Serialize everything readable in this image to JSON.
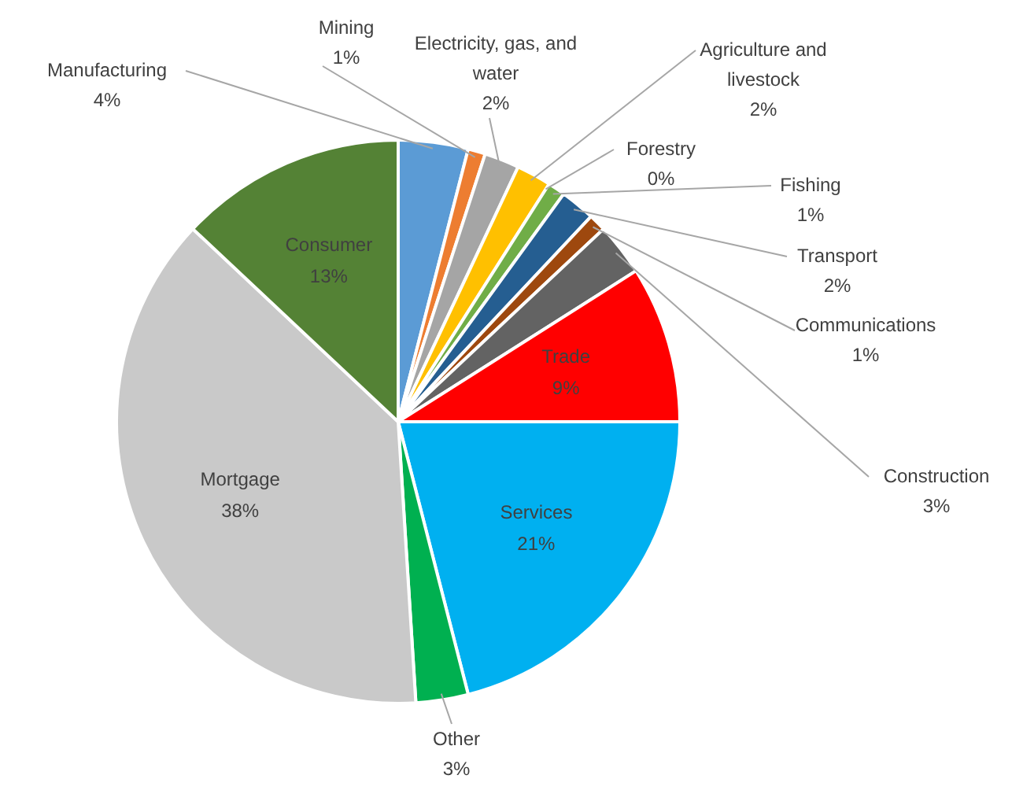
{
  "chart_data": {
    "type": "pie",
    "categories": [
      "Manufacturing",
      "Mining",
      "Electricity, gas, and water",
      "Agriculture and livestock",
      "Forestry",
      "Fishing",
      "Transport",
      "Communications",
      "Construction",
      "Trade",
      "Services",
      "Other",
      "Mortgage",
      "Consumer"
    ],
    "values": [
      4,
      1,
      2,
      2,
      0,
      1,
      2,
      1,
      3,
      9,
      21,
      3,
      38,
      13
    ],
    "colors": [
      "#5b9bd5",
      "#ed7d31",
      "#a5a5a5",
      "#ffc000",
      "#4472c4",
      "#70ad47",
      "#255e91",
      "#9e480e",
      "#636363",
      "#ff0000",
      "#00b0f0",
      "#00b050",
      "#c9c9c9",
      "#548235"
    ],
    "value_labels": [
      "4%",
      "1%",
      "2%",
      "2%",
      "0%",
      "1%",
      "2%",
      "1%",
      "3%",
      "9%",
      "21%",
      "3%",
      "38%",
      "13%"
    ],
    "legend": false
  }
}
